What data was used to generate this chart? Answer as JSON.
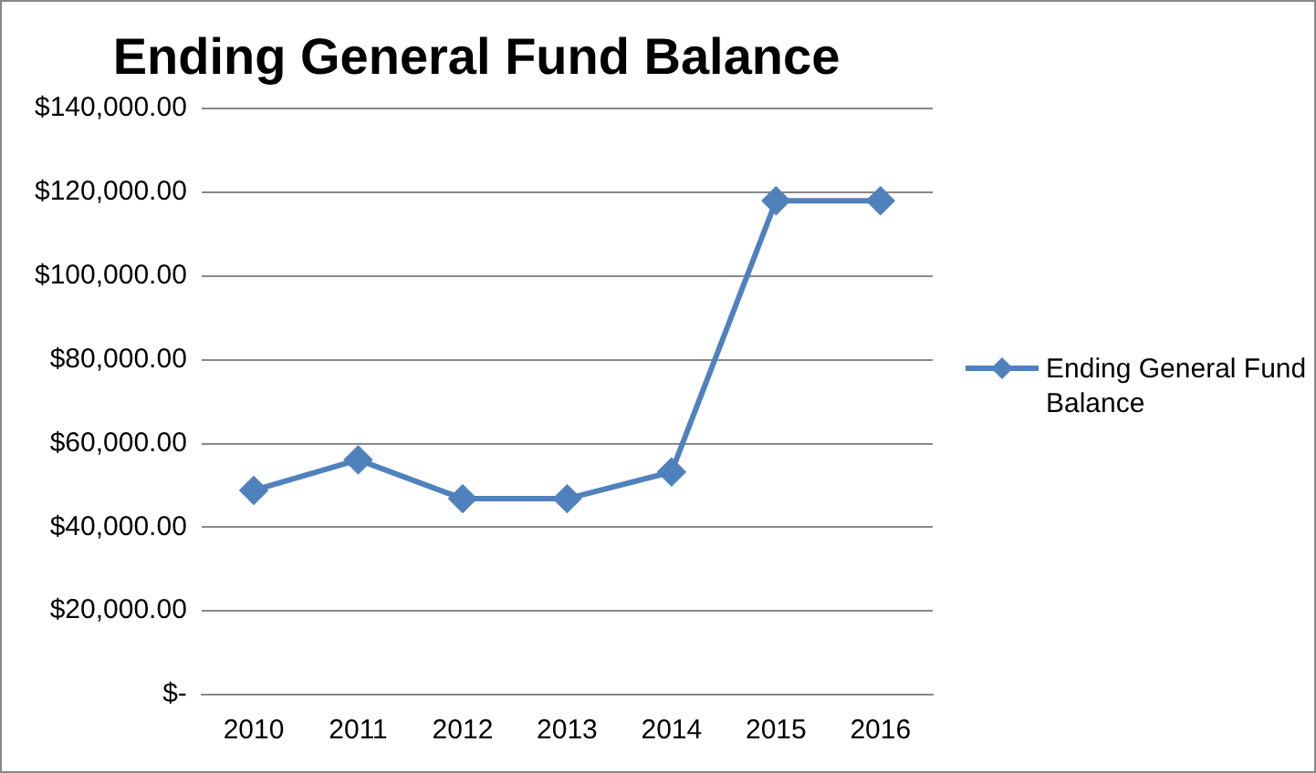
{
  "chart_data": {
    "type": "line",
    "title": "Ending General Fund Balance",
    "categories": [
      "2010",
      "2011",
      "2012",
      "2013",
      "2014",
      "2015",
      "2016"
    ],
    "series": [
      {
        "name": "Ending General Fund Balance",
        "color": "#4f81bd",
        "values": [
          48800,
          56100,
          46800,
          46800,
          53200,
          118000,
          118000
        ]
      }
    ],
    "ylim": [
      0,
      140000
    ],
    "yticks": [
      {
        "value": 0,
        "label": "$-"
      },
      {
        "value": 20000,
        "label": "$20,000.00"
      },
      {
        "value": 40000,
        "label": "$40,000.00"
      },
      {
        "value": 60000,
        "label": "$60,000.00"
      },
      {
        "value": 80000,
        "label": "$80,000.00"
      },
      {
        "value": 100000,
        "label": "$100,000.00"
      },
      {
        "value": 120000,
        "label": "$120,000.00"
      },
      {
        "value": 140000,
        "label": "$140,000.00"
      }
    ],
    "grid": "y",
    "legend": "right",
    "marker": "diamond",
    "line_style": "solid"
  }
}
